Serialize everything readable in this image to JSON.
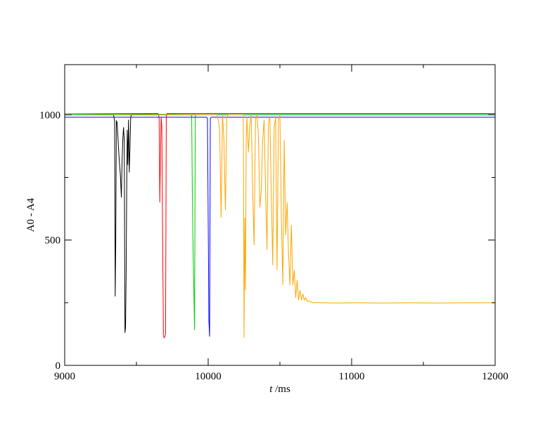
{
  "chart_data": {
    "type": "line",
    "title": "",
    "xlabel": {
      "italic": "t",
      "rest": " /ms"
    },
    "ylabel": "A0 - A4",
    "xlim": [
      9000,
      12000
    ],
    "ylim": [
      0,
      1200
    ],
    "xticks": [
      9000,
      10000,
      11000,
      12000
    ],
    "yticks": [
      0,
      500,
      1000
    ],
    "x_minor_step": 500,
    "y_minor_step": 250,
    "grid": false,
    "legend": "none",
    "series": [
      {
        "color": "#000000",
        "x": [
          9000,
          9340,
          9348,
          9352,
          9356,
          9360,
          9365,
          9372,
          9380,
          9388,
          9395,
          9400,
          9405,
          9410,
          9415,
          9420,
          9424,
          9428,
          9432,
          9436,
          9440,
          9445,
          9450,
          9455,
          9460,
          9465,
          12000
        ],
        "y": [
          1000,
          1000,
          975,
          275,
          500,
          975,
          970,
          900,
          820,
          760,
          670,
          820,
          900,
          950,
          900,
          130,
          150,
          350,
          700,
          940,
          800,
          980,
          770,
          870,
          990,
          1000,
          1000
        ]
      },
      {
        "color": "#ff0000",
        "x": [
          9000,
          9650,
          9658,
          9663,
          9667,
          9672,
          9677,
          9682,
          9688,
          9693,
          9698,
          9703,
          9708,
          9713,
          12000
        ],
        "y": [
          1005,
          1005,
          990,
          650,
          820,
          990,
          950,
          550,
          120,
          110,
          115,
          125,
          990,
          1005,
          1005
        ]
      },
      {
        "color": "#00cc00",
        "x": [
          9000,
          9880,
          9885,
          9890,
          9895,
          9900,
          9905,
          9910,
          9915,
          12000
        ],
        "y": [
          1000,
          1000,
          995,
          660,
          450,
          300,
          140,
          990,
          1000,
          1000
        ]
      },
      {
        "color": "#0000ff",
        "x": [
          9000,
          9990,
          9995,
          10000,
          10005,
          10010,
          10015,
          10020,
          12000
        ],
        "y": [
          990,
          990,
          985,
          600,
          180,
          115,
          985,
          990,
          990
        ]
      },
      {
        "color": "#ffa500",
        "x": [
          9000,
          10060,
          10070,
          10080,
          10090,
          10100,
          10110,
          10120,
          10130,
          10140,
          10150,
          10160,
          10170,
          10180,
          10190,
          10200,
          10210,
          10220,
          10230,
          10240,
          10245,
          10250,
          10255,
          10260,
          10265,
          10270,
          10280,
          10290,
          10300,
          10310,
          10320,
          10330,
          10340,
          10350,
          10360,
          10370,
          10380,
          10390,
          10400,
          10410,
          10420,
          10430,
          10440,
          10450,
          10460,
          10470,
          10480,
          10490,
          10500,
          10510,
          10520,
          10530,
          10540,
          10550,
          10560,
          10570,
          10580,
          10590,
          10600,
          10610,
          10620,
          10630,
          10640,
          10650,
          10660,
          10670,
          10680,
          10690,
          10700,
          10720,
          10740,
          10760,
          10780,
          10800,
          10900,
          11000,
          11200,
          11400,
          11600,
          11800,
          12000
        ],
        "y": [
          1005,
          1000,
          980,
          940,
          590,
          1000,
          900,
          620,
          990,
          1000,
          1000,
          1000,
          1000,
          1000,
          1000,
          1000,
          1000,
          1000,
          1000,
          1000,
          1000,
          110,
          590,
          300,
          900,
          990,
          850,
          960,
          1000,
          700,
          480,
          980,
          1000,
          920,
          630,
          700,
          900,
          980,
          700,
          460,
          970,
          990,
          680,
          400,
          950,
          990,
          380,
          980,
          1000,
          600,
          320,
          900,
          520,
          650,
          450,
          320,
          560,
          320,
          380,
          270,
          340,
          260,
          300,
          260,
          285,
          260,
          270,
          255,
          258,
          252,
          250,
          251,
          250,
          250,
          249,
          250,
          249,
          250,
          249,
          250,
          250
        ]
      }
    ]
  }
}
